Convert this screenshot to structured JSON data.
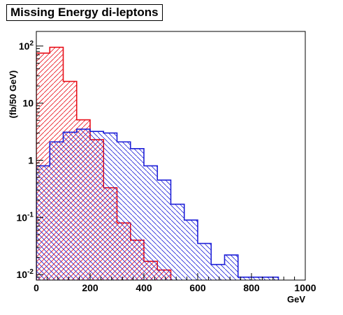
{
  "chart_data": {
    "type": "bar",
    "title": "Missing Energy di-leptons",
    "xlabel": "GeV",
    "ylabel": "(fb/50 GeV)",
    "xlim": [
      0,
      1000
    ],
    "ylim": [
      0.008,
      180
    ],
    "y_scale": "log",
    "x_ticks": [
      0,
      200,
      400,
      600,
      800,
      1000
    ],
    "y_ticks": [
      {
        "value": 0.01,
        "base": "10",
        "exp": "-2"
      },
      {
        "value": 0.1,
        "base": "10",
        "exp": "-1"
      },
      {
        "value": 1,
        "base": "1",
        "exp": ""
      },
      {
        "value": 10,
        "base": "10",
        "exp": ""
      },
      {
        "value": 100,
        "base": "10",
        "exp": "2"
      }
    ],
    "bin_edges": [
      0,
      50,
      100,
      150,
      200,
      250,
      300,
      350,
      400,
      450,
      500,
      550,
      600,
      650,
      700,
      750,
      800,
      850,
      900,
      950,
      1000
    ],
    "series": [
      {
        "color": "#e8101a",
        "hatch": "diagonal-up",
        "values": [
          75,
          95,
          24,
          5.1,
          2.3,
          0.33,
          0.08,
          0.04,
          0.017,
          0.012,
          0,
          0,
          0,
          0,
          0,
          0,
          0,
          0,
          0,
          0
        ]
      },
      {
        "color": "#1d1fd8",
        "hatch": "diagonal-down",
        "values": [
          0.8,
          2.1,
          3.1,
          3.5,
          3.2,
          3.0,
          2.1,
          1.6,
          0.8,
          0.45,
          0.17,
          0.09,
          0.035,
          0.015,
          0.022,
          0.009,
          0.009,
          0.009,
          0,
          0
        ]
      }
    ]
  }
}
